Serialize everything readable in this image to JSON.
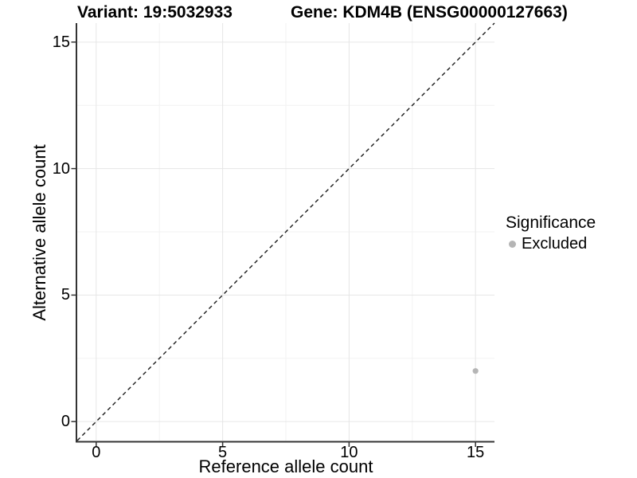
{
  "titles": {
    "variant": "Variant: 19:5032933",
    "gene": "Gene: KDM4B (ENSG00000127663)"
  },
  "axes": {
    "x_label": "Reference allele count",
    "y_label": "Alternative allele count"
  },
  "legend": {
    "title": "Significance",
    "entries": [
      {
        "label": "Excluded",
        "color": "#b5b5b5"
      }
    ]
  },
  "colors": {
    "background": "#ffffff",
    "axis_line": "#333333",
    "tick_mark": "#333333",
    "grid_major": "#e6e6e6",
    "grid_minor": "#f2f2f2",
    "identity_line": "#1a1a1a",
    "point": "#b5b5b5",
    "text": "#000000"
  },
  "chart_data": {
    "type": "scatter",
    "title": "Variant: 19:5032933    Gene: KDM4B (ENSG00000127663)",
    "xlabel": "Reference allele count",
    "ylabel": "Alternative allele count",
    "xlim": [
      -0.75,
      15.75
    ],
    "ylim": [
      -0.75,
      15.75
    ],
    "xticks": [
      0,
      5,
      10,
      15
    ],
    "yticks": [
      0,
      5,
      10,
      15
    ],
    "minor_ticks": [
      2.5,
      7.5,
      12.5
    ],
    "grid": true,
    "identity_line": {
      "style": "dashed",
      "equation": "y = x",
      "from": [
        -0.75,
        -0.75
      ],
      "to": [
        15.75,
        15.75
      ],
      "color": "#1a1a1a"
    },
    "legend_position": "right",
    "series": [
      {
        "name": "Excluded",
        "color": "#b5b5b5",
        "points": [
          {
            "x": 15,
            "y": 2
          }
        ]
      }
    ]
  }
}
